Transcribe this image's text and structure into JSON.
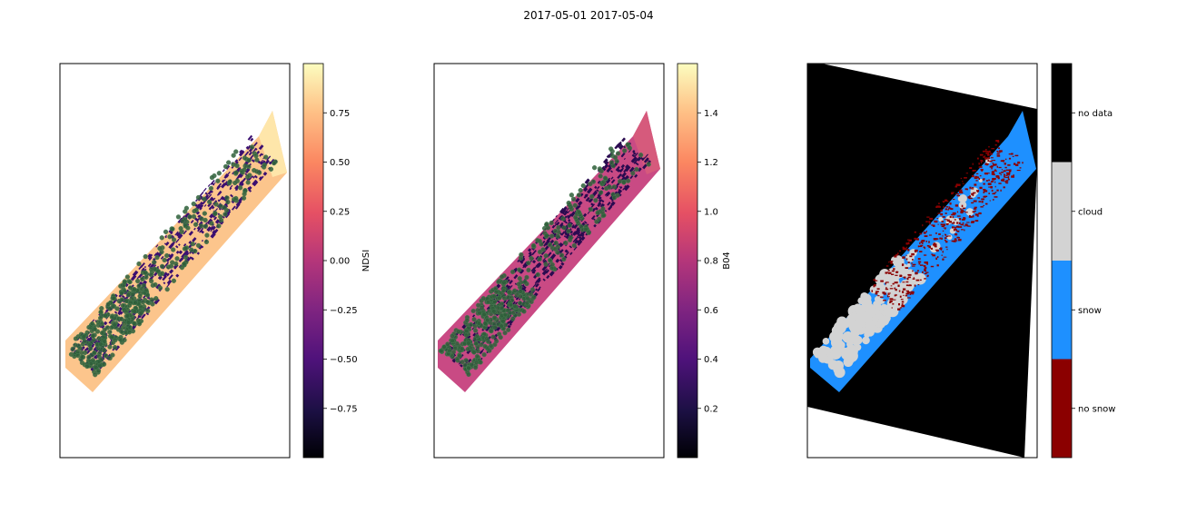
{
  "figure": {
    "title": "2017-05-01 2017-05-04"
  },
  "chart_data": [
    {
      "type": "heatmap",
      "title": "",
      "colorbar": {
        "label": "NDSI",
        "colormap": "magma",
        "range": [
          -1.0,
          1.0
        ],
        "ticks": [
          0.75,
          0.5,
          0.25,
          0.0,
          -0.25,
          -0.5,
          -0.75
        ],
        "tick_labels": [
          "0.75",
          "0.50",
          "0.25",
          "0.00",
          "−0.25",
          "−0.50",
          "−0.75"
        ]
      },
      "xticks": [],
      "yticks": [],
      "dominant_values": {
        "swath_fill": 0.65,
        "patches": -0.25
      }
    },
    {
      "type": "heatmap",
      "title": "",
      "colorbar": {
        "label": "B04",
        "colormap": "magma",
        "range": [
          0.0,
          1.6
        ],
        "ticks": [
          1.4,
          1.2,
          1.0,
          0.8,
          0.6,
          0.4,
          0.2
        ],
        "tick_labels": [
          "1.4",
          "1.2",
          "1.0",
          "0.8",
          "0.6",
          "0.4",
          "0.2"
        ]
      },
      "xticks": [],
      "yticks": [],
      "dominant_values": {
        "swath_fill": 0.75,
        "patches": 0.45
      }
    },
    {
      "type": "heatmap",
      "title": "",
      "colorbar": {
        "label": "",
        "categories": [
          "no data",
          "cloud",
          "snow",
          "no snow"
        ],
        "colors": [
          "#000000",
          "#d3d3d3",
          "#1e90ff",
          "#8b0000"
        ]
      },
      "xticks": [],
      "yticks": []
    }
  ],
  "colors": {
    "vegetation_markers": "#2e5e3a",
    "axes_frame": "#000000"
  }
}
